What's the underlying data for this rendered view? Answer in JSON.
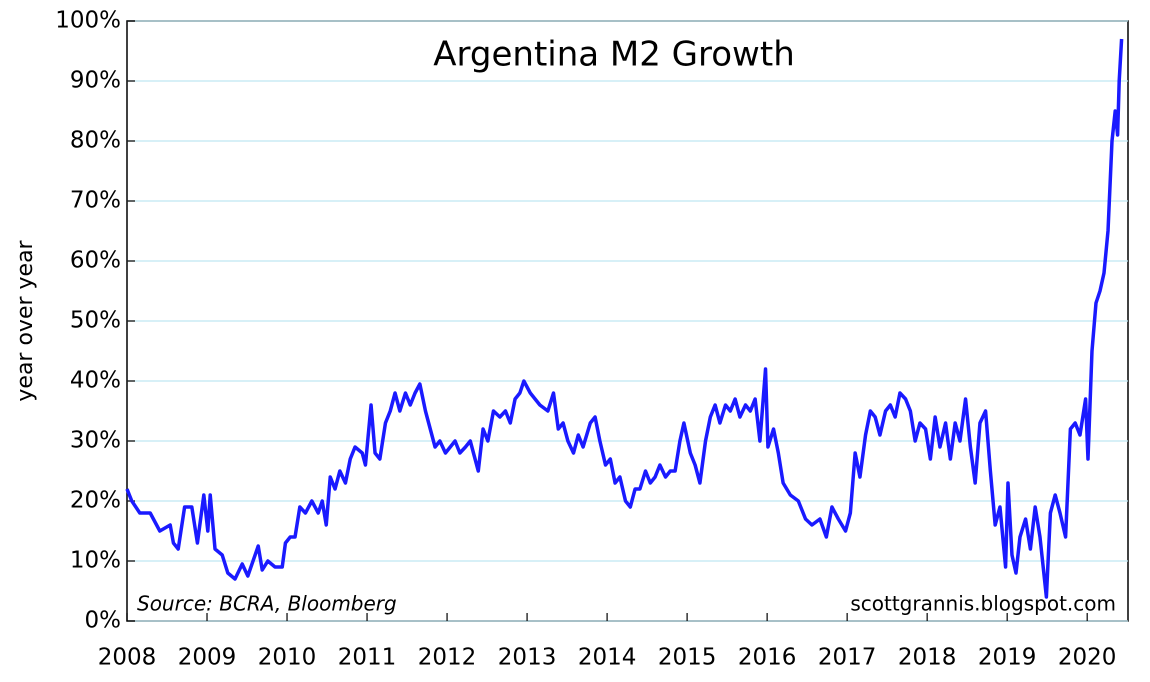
{
  "chart_data": {
    "type": "line",
    "title": "Argentina M2 Growth",
    "y_label": "year over year",
    "annotations": [
      "Source: BCRA, Bloomberg",
      "scottgrannis.blogspot.com"
    ],
    "xlim": [
      2008,
      2020.51
    ],
    "xticks": [
      2008,
      2009,
      2010,
      2011,
      2012,
      2013,
      2014,
      2015,
      2016,
      2017,
      2018,
      2019,
      2020
    ],
    "ylim": [
      0,
      100
    ],
    "yticks": [
      {
        "value": 0,
        "label": "0%"
      },
      {
        "value": 10,
        "label": "10%"
      },
      {
        "value": 20,
        "label": "20%"
      },
      {
        "value": 30,
        "label": "30%"
      },
      {
        "value": 40,
        "label": "40%"
      },
      {
        "value": 50,
        "label": "50%"
      },
      {
        "value": 60,
        "label": "60%"
      },
      {
        "value": 70,
        "label": "70%"
      },
      {
        "value": 80,
        "label": "80%"
      },
      {
        "value": 90,
        "label": "90%"
      },
      {
        "value": 100,
        "label": "100%"
      }
    ],
    "grid": true,
    "series": [
      {
        "name": "Argentina M2 growth",
        "color": "#1a1aff",
        "x": [
          2008.0,
          2008.06,
          2008.16,
          2008.29,
          2008.41,
          2008.54,
          2008.58,
          2008.64,
          2008.72,
          2008.81,
          2008.88,
          2008.96,
          2009.01,
          2009.04,
          2009.1,
          2009.19,
          2009.26,
          2009.35,
          2009.44,
          2009.51,
          2009.64,
          2009.69,
          2009.76,
          2009.85,
          2009.94,
          2009.98,
          2010.04,
          2010.1,
          2010.16,
          2010.23,
          2010.31,
          2010.39,
          2010.44,
          2010.49,
          2010.54,
          2010.6,
          2010.66,
          2010.73,
          2010.79,
          2010.85,
          2010.94,
          2010.98,
          2011.05,
          2011.1,
          2011.16,
          2011.23,
          2011.29,
          2011.35,
          2011.41,
          2011.48,
          2011.54,
          2011.6,
          2011.66,
          2011.73,
          2011.79,
          2011.85,
          2011.91,
          2011.98,
          2012.04,
          2012.1,
          2012.16,
          2012.23,
          2012.29,
          2012.39,
          2012.45,
          2012.51,
          2012.58,
          2012.66,
          2012.73,
          2012.79,
          2012.85,
          2012.91,
          2012.96,
          2013.04,
          2013.1,
          2013.16,
          2013.26,
          2013.33,
          2013.39,
          2013.45,
          2013.51,
          2013.58,
          2013.64,
          2013.7,
          2013.79,
          2013.85,
          2013.91,
          2013.98,
          2014.04,
          2014.1,
          2014.16,
          2014.23,
          2014.29,
          2014.35,
          2014.41,
          2014.48,
          2014.54,
          2014.6,
          2014.66,
          2014.73,
          2014.79,
          2014.85,
          2014.91,
          2014.96,
          2015.04,
          2015.1,
          2015.16,
          2015.23,
          2015.29,
          2015.35,
          2015.41,
          2015.48,
          2015.54,
          2015.6,
          2015.66,
          2015.73,
          2015.79,
          2015.85,
          2015.91,
          2015.98,
          2016.01,
          2016.08,
          2016.14,
          2016.2,
          2016.29,
          2016.39,
          2016.48,
          2016.56,
          2016.66,
          2016.74,
          2016.81,
          2016.89,
          2016.98,
          2017.04,
          2017.1,
          2017.16,
          2017.23,
          2017.29,
          2017.35,
          2017.41,
          2017.48,
          2017.54,
          2017.6,
          2017.66,
          2017.73,
          2017.79,
          2017.85,
          2017.91,
          2017.98,
          2018.04,
          2018.1,
          2018.16,
          2018.23,
          2018.29,
          2018.35,
          2018.41,
          2018.48,
          2018.54,
          2018.6,
          2018.66,
          2018.73,
          2018.79,
          2018.85,
          2018.91,
          2018.98,
          2019.01,
          2019.06,
          2019.11,
          2019.16,
          2019.23,
          2019.29,
          2019.35,
          2019.41,
          2019.49,
          2019.54,
          2019.6,
          2019.66,
          2019.73,
          2019.79,
          2019.85,
          2019.91,
          2019.98,
          2020.01,
          2020.06,
          2020.11,
          2020.16,
          2020.21,
          2020.26,
          2020.31,
          2020.35,
          2020.38,
          2020.4,
          2020.43
        ],
        "values": [
          22,
          20,
          18,
          18,
          15,
          16,
          13,
          12,
          19,
          19,
          13,
          21,
          15,
          21,
          12,
          11,
          8,
          7,
          9.5,
          7.5,
          12.5,
          8.5,
          10,
          9,
          9,
          13,
          14,
          14,
          19,
          18,
          20,
          18,
          20,
          16,
          24,
          22,
          25,
          23,
          27,
          29,
          28,
          26,
          36,
          28,
          27,
          33,
          35,
          38,
          35,
          38,
          36,
          38,
          39.5,
          35,
          32,
          29,
          30,
          28,
          29,
          30,
          28,
          29,
          30,
          25,
          32,
          30,
          35,
          34,
          35,
          33,
          37,
          38,
          40,
          38,
          37,
          36,
          35,
          38,
          32,
          33,
          30,
          28,
          31,
          29,
          33,
          34,
          30,
          26,
          27,
          23,
          24,
          20,
          19,
          22,
          22,
          25,
          23,
          24,
          26,
          24,
          25,
          25,
          30,
          33,
          28,
          26,
          23,
          30,
          34,
          36,
          33,
          36,
          35,
          37,
          34,
          36,
          35,
          37,
          30,
          42,
          29,
          32,
          28,
          23,
          21,
          20,
          17,
          16,
          17,
          14,
          19,
          17,
          15,
          18,
          28,
          24,
          31,
          35,
          34,
          31,
          35,
          36,
          34,
          38,
          37,
          35,
          30,
          33,
          32,
          27,
          34,
          29,
          33,
          27,
          33,
          30,
          37,
          29,
          23,
          33,
          35,
          25,
          16,
          19,
          9,
          23,
          11,
          8,
          14,
          17,
          12,
          19,
          14,
          4,
          18,
          21,
          18,
          14,
          32,
          33,
          31,
          37,
          27,
          45,
          53,
          55,
          58,
          65,
          80,
          85,
          81,
          90,
          97
        ]
      }
    ]
  }
}
